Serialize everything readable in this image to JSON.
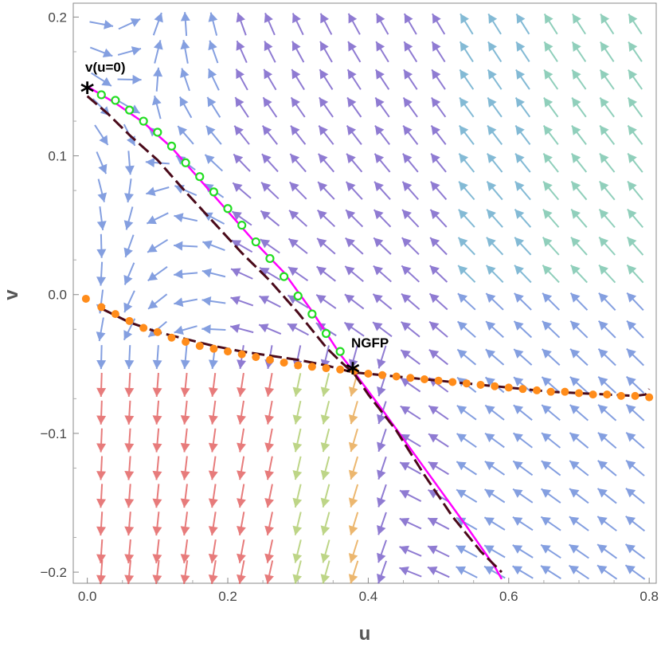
{
  "chart_data": {
    "type": "scatter",
    "subtype": "vector-field phase portrait",
    "title": "",
    "xlabel": "u",
    "ylabel": "v",
    "xlim": [
      -0.02,
      0.81
    ],
    "ylim": [
      -0.208,
      0.21
    ],
    "xticks": [
      0.0,
      0.2,
      0.4,
      0.6,
      0.8
    ],
    "xtick_labels": [
      "0.0",
      "0.2",
      "0.4",
      "0.6",
      "0.8"
    ],
    "yticks": [
      -0.2,
      -0.1,
      0.0,
      0.1,
      0.2
    ],
    "ytick_labels": [
      "−0.2",
      "−0.1",
      "0.0",
      "0.1",
      "0.2"
    ],
    "grid": false,
    "legend": "none",
    "annotations": [
      {
        "text": "v(u=0)",
        "x": 0.0,
        "y": 0.146
      },
      {
        "text": "NGFP",
        "x": 0.378,
        "y": -0.056
      }
    ],
    "points": [
      {
        "name": "v(u=0)",
        "marker": "star",
        "x": 0.0,
        "y": 0.146
      },
      {
        "name": "NGFP",
        "marker": "star",
        "x": 0.378,
        "y": -0.056
      }
    ],
    "series": [
      {
        "style": "solid",
        "color": "#ff00ff",
        "x": [
          0.0,
          0.04,
          0.08,
          0.12,
          0.16,
          0.2,
          0.24,
          0.28,
          0.32,
          0.36,
          0.38,
          0.42,
          0.46,
          0.5,
          0.54,
          0.58,
          0.59
        ],
        "y": [
          0.15,
          0.138,
          0.124,
          0.106,
          0.083,
          0.06,
          0.037,
          0.016,
          -0.012,
          -0.043,
          -0.056,
          -0.083,
          -0.111,
          -0.139,
          -0.167,
          -0.196,
          -0.205
        ]
      },
      {
        "style": "dashed",
        "color": "#4a0a1a",
        "x": [
          0.0,
          0.03,
          0.06,
          0.1,
          0.14,
          0.18,
          0.22,
          0.26,
          0.3,
          0.34,
          0.36,
          0.38,
          0.4,
          0.44,
          0.48,
          0.52,
          0.56,
          0.59
        ],
        "y": [
          0.143,
          0.13,
          0.115,
          0.097,
          0.074,
          0.052,
          0.03,
          0.01,
          -0.013,
          -0.038,
          -0.048,
          -0.057,
          -0.072,
          -0.098,
          -0.13,
          -0.16,
          -0.185,
          -0.2
        ]
      },
      {
        "style": "dashed",
        "color": "#4a0a1a",
        "x": [
          0.02,
          0.06,
          0.1,
          0.14,
          0.18,
          0.22,
          0.26,
          0.3,
          0.34,
          0.378,
          0.42,
          0.46,
          0.5,
          0.54,
          0.58,
          0.62,
          0.66,
          0.7,
          0.74,
          0.78,
          0.795,
          0.8
        ],
        "y": [
          -0.01,
          -0.02,
          -0.027,
          -0.032,
          -0.037,
          -0.041,
          -0.044,
          -0.047,
          -0.051,
          -0.056,
          -0.058,
          -0.06,
          -0.062,
          -0.064,
          -0.066,
          -0.068,
          -0.07,
          -0.071,
          -0.072,
          -0.073,
          -0.072,
          -0.068
        ]
      },
      {
        "style": "orange-dots",
        "color": "#ff8c1a",
        "x": [
          -0.002,
          0.02,
          0.04,
          0.06,
          0.08,
          0.1,
          0.12,
          0.14,
          0.16,
          0.18,
          0.2,
          0.22,
          0.24,
          0.26,
          0.28,
          0.3,
          0.32,
          0.34,
          0.36,
          0.38,
          0.4,
          0.42,
          0.44,
          0.46,
          0.48,
          0.5,
          0.52,
          0.54,
          0.56,
          0.58,
          0.6,
          0.62,
          0.64,
          0.66,
          0.68,
          0.7,
          0.72,
          0.74,
          0.76,
          0.78,
          0.8
        ],
        "y": [
          -0.003,
          -0.009,
          -0.014,
          -0.019,
          -0.024,
          -0.027,
          -0.031,
          -0.034,
          -0.037,
          -0.039,
          -0.041,
          -0.043,
          -0.045,
          -0.047,
          -0.049,
          -0.051,
          -0.052,
          -0.053,
          -0.054,
          -0.055,
          -0.057,
          -0.058,
          -0.059,
          -0.06,
          -0.061,
          -0.062,
          -0.063,
          -0.064,
          -0.065,
          -0.066,
          -0.067,
          -0.068,
          -0.069,
          -0.07,
          -0.07,
          -0.071,
          -0.072,
          -0.072,
          -0.073,
          -0.073,
          -0.074
        ]
      },
      {
        "style": "green-rings",
        "color": "#22dd22",
        "x": [
          0.02,
          0.04,
          0.06,
          0.08,
          0.1,
          0.12,
          0.14,
          0.16,
          0.18,
          0.2,
          0.22,
          0.24,
          0.26,
          0.28,
          0.3,
          0.32,
          0.34,
          0.36
        ],
        "y": [
          0.144,
          0.14,
          0.133,
          0.125,
          0.117,
          0.107,
          0.095,
          0.085,
          0.074,
          0.062,
          0.05,
          0.038,
          0.026,
          0.013,
          -0.001,
          -0.014,
          -0.028,
          -0.041
        ]
      }
    ],
    "vector_field": {
      "grid_x": [
        0.02,
        0.06,
        0.1,
        0.14,
        0.18,
        0.22,
        0.26,
        0.3,
        0.34,
        0.38,
        0.42,
        0.46,
        0.5,
        0.54,
        0.58,
        0.62,
        0.66,
        0.7,
        0.74,
        0.78
      ],
      "grid_y": [
        0.195,
        0.175,
        0.155,
        0.135,
        0.115,
        0.095,
        0.075,
        0.055,
        0.035,
        0.015,
        -0.005,
        -0.025,
        -0.045,
        -0.065,
        -0.085,
        -0.105,
        -0.125,
        -0.145,
        -0.165,
        -0.185,
        -0.2
      ],
      "magnitude_colors": [
        "#6a4fc4",
        "#5b7fd6",
        "#5aa3c7",
        "#6cc0a5",
        "#a8c860",
        "#e6a040",
        "#e05050"
      ]
    }
  }
}
